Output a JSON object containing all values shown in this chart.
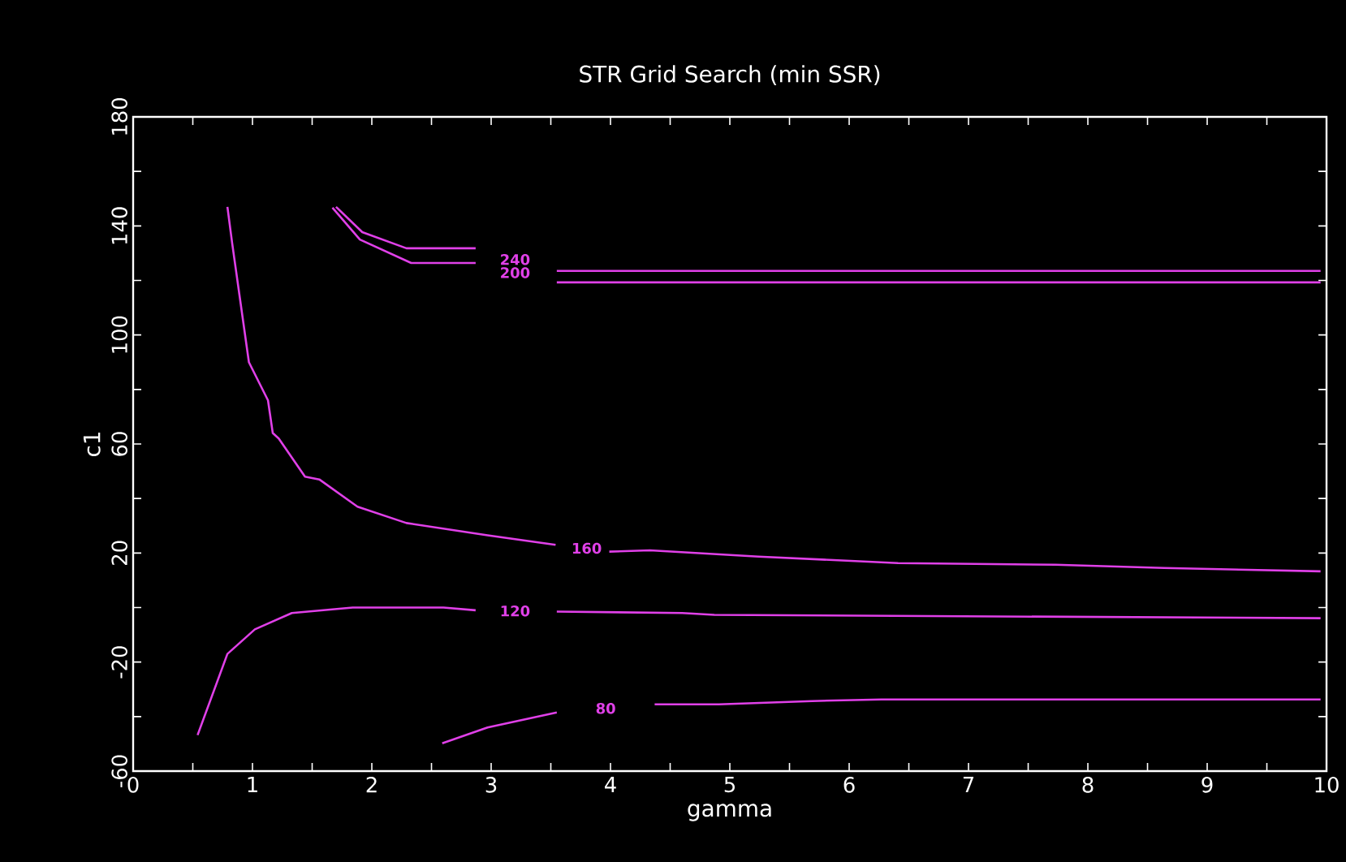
{
  "chart_data": {
    "type": "line",
    "title": "STR Grid Search (min SSR)",
    "xlabel": "gamma",
    "ylabel": "c1",
    "xlim": [
      0,
      10
    ],
    "ylim": [
      -60,
      180
    ],
    "xticks": [
      0,
      {
        "value": 0.5,
        "label": null
      },
      1,
      {
        "value": 1.5,
        "label": null
      },
      2,
      {
        "value": 2.5,
        "label": null
      },
      3,
      {
        "value": 3.5,
        "label": null
      },
      4,
      {
        "value": 4.5,
        "label": null
      },
      5,
      {
        "value": 5.5,
        "label": null
      },
      6,
      {
        "value": 6.5,
        "label": null
      },
      7,
      {
        "value": 7.5,
        "label": null
      },
      8,
      {
        "value": 8.5,
        "label": null
      },
      9,
      {
        "value": 9.5,
        "label": null
      },
      10
    ],
    "yticks": [
      -60,
      {
        "value": -40,
        "label": null
      },
      -20,
      {
        "value": 0,
        "label": null
      },
      20,
      {
        "value": 40,
        "label": null
      },
      60,
      {
        "value": 80,
        "label": null
      },
      100,
      {
        "value": 120,
        "label": null
      },
      140,
      {
        "value": 160,
        "label": null
      },
      180
    ],
    "series": [
      {
        "name": "80",
        "color": "#e040e8",
        "x": [
          2.59,
          2.97,
          3.55,
          3.96,
          4.37,
          4.91,
          5.69,
          6.27,
          9.95
        ],
        "values": [
          -49.8,
          -44,
          -38.5,
          null,
          -35.5,
          -35.5,
          -34.3,
          -33.7,
          -33.7
        ]
      },
      {
        "name": "120",
        "color": "#e040e8",
        "x": [
          0.54,
          0.79,
          1.02,
          1.33,
          1.84,
          2.6,
          2.87,
          3.2,
          3.55,
          4.6,
          4.87,
          9.95
        ],
        "values": [
          -46.8,
          -17,
          -8,
          -2,
          0,
          0,
          -1,
          null,
          -1.5,
          -2,
          -2.7,
          -3.9
        ]
      },
      {
        "name": "160",
        "color": "#e040e8",
        "x": [
          0.79,
          0.83,
          0.97,
          1.13,
          1.17,
          1.22,
          1.44,
          1.56,
          1.88,
          2.29,
          2.97,
          3.54,
          3.8,
          3.99,
          4.33,
          5.24,
          6.41,
          7.73,
          8.64,
          9.95
        ],
        "values": [
          147,
          133.6,
          90,
          76,
          64,
          62,
          48,
          47,
          37,
          31,
          26.5,
          23,
          null,
          20.5,
          21,
          18.7,
          16.3,
          15.7,
          14.5,
          13.3
        ]
      },
      {
        "name": "200",
        "color": "#e040e8",
        "x": [
          1.67,
          1.9,
          2.33,
          2.87,
          3.2,
          3.55,
          9.95
        ],
        "values": [
          146.7,
          135,
          126.4,
          126.4,
          null,
          119.3,
          119.3
        ]
      },
      {
        "name": "240",
        "color": "#e040e8",
        "x": [
          1.7,
          1.92,
          2.29,
          2.87,
          3.2,
          3.55,
          9.95
        ],
        "values": [
          147,
          137.7,
          131.8,
          131.8,
          null,
          123.5,
          123.5
        ]
      }
    ]
  }
}
